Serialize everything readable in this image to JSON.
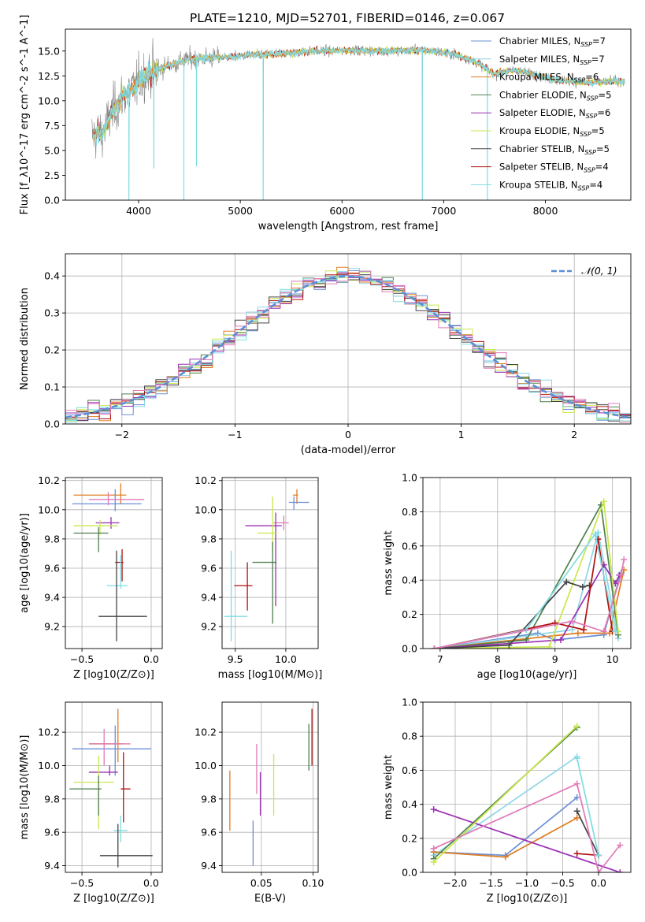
{
  "figure_title": "PLATE=1210, MJD=52701, FIBERID=0146, z=0.067",
  "colors": {
    "chabrier_miles": "#6b8fd6",
    "salpeter_miles": "#8fd6e6",
    "kroupa_miles": "#e07b1f",
    "chabrier_elodie": "#4f7f4f",
    "salpeter_elodie": "#9b2fb4",
    "kroupa_elodie": "#c9e84a",
    "chabrier_stelib": "#444444",
    "salpeter_stelib": "#b01010",
    "kroupa_stelib": "#7fdde0",
    "pink": "#e07ab8",
    "data": "#808080",
    "normal": "#5b8fd6"
  },
  "chart_data": [
    {
      "id": "spectrum",
      "type": "line",
      "title": "PLATE=1210, MJD=52701, FIBERID=0146, z=0.067",
      "xlabel": "wavelength [Angstrom, rest frame]",
      "ylabel": "Flux [f_λ10^-17 erg cm^-2 s^-1 A^-1]",
      "xlim": [
        3280,
        8840
      ],
      "ylim": [
        0,
        17.2
      ],
      "xticks": [
        "4000",
        "5000",
        "6000",
        "7000",
        "8000"
      ],
      "yticks": [
        "0.0",
        "2.5",
        "5.0",
        "7.5",
        "10.0",
        "12.5",
        "15.0"
      ],
      "grid": false,
      "legend_position": "top-right",
      "legend": [
        "Chabrier MILES, N_SSP=7",
        "Salpeter MILES, N_SSP=7",
        "Kroupa MILES, N_SSP=6",
        "Chabrier ELODIE, N_SSP=5",
        "Salpeter ELODIE, N_SSP=6",
        "Kroupa ELODIE, N_SSP=5",
        "Chabrier STELIB, N_SSP=5",
        "Salpeter STELIB, N_SSP=4",
        "Kroupa STELIB, N_SSP=4"
      ],
      "continuum": {
        "x": [
          3550,
          3650,
          3750,
          3850,
          3950,
          4050,
          4150,
          4300,
          4500,
          4700,
          4900,
          5100,
          5300,
          5500,
          5700,
          5900,
          6100,
          6300,
          6500,
          6700,
          6900,
          7100,
          7300,
          7500,
          7700,
          7900,
          8100,
          8300,
          8500,
          8700
        ],
        "y": [
          6.5,
          6.8,
          9.0,
          10.5,
          11.2,
          12.6,
          12.9,
          13.6,
          14.2,
          14.3,
          14.4,
          14.6,
          14.7,
          14.8,
          15.0,
          15.0,
          15.1,
          15.0,
          15.0,
          15.1,
          15.0,
          14.7,
          14.0,
          12.7,
          13.1,
          12.6,
          12.1,
          11.9,
          11.8,
          12.0
        ]
      },
      "absorption_lines": [
        {
          "x": 3905,
          "y": 0.0
        },
        {
          "x": 4445,
          "y": 0.0
        },
        {
          "x": 4570,
          "y": 3.4
        },
        {
          "x": 4150,
          "y": 3.2
        },
        {
          "x": 5225,
          "y": 0.0
        },
        {
          "x": 6790,
          "y": 0.0
        },
        {
          "x": 7430,
          "y": 0.0
        }
      ]
    },
    {
      "id": "residuals",
      "type": "line",
      "xlabel": "(data-model)/error",
      "ylabel": "Normed distribution",
      "xlim": [
        -2.5,
        2.5
      ],
      "ylim": [
        0,
        0.46
      ],
      "xticks": [
        "−2",
        "−1",
        "0",
        "1",
        "2"
      ],
      "yticks": [
        "0.0",
        "0.1",
        "0.2",
        "0.3",
        "0.4"
      ],
      "grid": true,
      "legend_position": "top-right",
      "legend": [
        "𝒩(0, 1)"
      ],
      "bin_width": 0.1,
      "series_note": "step histograms, 9 model fits; dashed line = N(0,1)"
    },
    {
      "id": "age_vs_Z",
      "type": "scatter",
      "xlabel": "Z [log10(Z/Z⊙)]",
      "ylabel": "age  [log10(age/yr)]",
      "xlim": [
        -0.62,
        0.08
      ],
      "ylim": [
        9.05,
        10.22
      ],
      "xticks": [
        "−0.5",
        "0.0"
      ],
      "yticks": [
        "9.2",
        "9.4",
        "9.6",
        "9.8",
        "10.0",
        "10.2"
      ],
      "grid": true,
      "points": [
        {
          "x": -0.22,
          "y": 10.1,
          "xerr": [
            0.34,
            0.04
          ],
          "yerr": [
            0.06,
            0.08
          ]
        },
        {
          "x": -0.26,
          "y": 10.04,
          "xerr": [
            0.31,
            0.19
          ],
          "yerr": [
            0.05,
            0.1
          ]
        },
        {
          "x": -0.31,
          "y": 10.07,
          "xerr": [
            0.14,
            0.26
          ],
          "yerr": [
            0.04,
            0.05
          ]
        },
        {
          "x": -0.29,
          "y": 9.91,
          "xerr": [
            0.11,
            0.06
          ],
          "yerr": [
            0.04,
            0.04
          ]
        },
        {
          "x": -0.37,
          "y": 9.89,
          "xerr": [
            0.19,
            0.13
          ],
          "yerr": [
            0.06,
            0.04
          ]
        },
        {
          "x": -0.38,
          "y": 9.84,
          "xerr": [
            0.18,
            0.07
          ],
          "yerr": [
            0.13,
            0.04
          ]
        },
        {
          "x": -0.21,
          "y": 9.64,
          "xerr": [
            0.05,
            0.01
          ],
          "yerr": [
            0.13,
            0.09
          ]
        },
        {
          "x": -0.22,
          "y": 9.48,
          "xerr": [
            0.1,
            0.05
          ],
          "yerr": [
            0.02,
            0.21
          ]
        },
        {
          "x": -0.25,
          "y": 9.27,
          "xerr": [
            0.13,
            0.22
          ],
          "yerr": [
            0.17,
            0.45
          ]
        }
      ]
    },
    {
      "id": "age_vs_mass",
      "type": "scatter",
      "xlabel": "mass [log10(M/M⊙)]",
      "ylabel": "",
      "xlim": [
        9.37,
        10.32
      ],
      "ylim": [
        9.05,
        10.22
      ],
      "xticks": [
        "9.5",
        "10.0"
      ],
      "yticks": [
        "9.2",
        "9.4",
        "9.6",
        "9.8",
        "10.0",
        "10.2"
      ],
      "grid": true,
      "points": [
        {
          "x": 10.11,
          "y": 10.1,
          "xerr": [
            0.04,
            0.01
          ],
          "yerr": [
            0.06,
            0.04
          ]
        },
        {
          "x": 10.08,
          "y": 10.05,
          "xerr": [
            0.05,
            0.15
          ],
          "yerr": [
            0.05,
            0.04
          ]
        },
        {
          "x": 9.98,
          "y": 9.91,
          "xerr": [
            0.1,
            0.05
          ],
          "yerr": [
            0.05,
            0.05
          ]
        },
        {
          "x": 9.9,
          "y": 9.89,
          "xerr": [
            0.3,
            0.06
          ],
          "yerr": [
            0.55,
            0.09
          ]
        },
        {
          "x": 9.87,
          "y": 9.84,
          "xerr": [
            0.15,
            0.05
          ],
          "yerr": [
            0.13,
            0.25
          ]
        },
        {
          "x": 9.87,
          "y": 9.64,
          "xerr": [
            0.2,
            0.04
          ],
          "yerr": [
            0.42,
            0.14
          ]
        },
        {
          "x": 9.62,
          "y": 9.48,
          "xerr": [
            0.13,
            0.05
          ],
          "yerr": [
            0.17,
            0.16
          ]
        },
        {
          "x": 9.46,
          "y": 9.27,
          "xerr": [
            0.07,
            0.16
          ],
          "yerr": [
            0.17,
            0.45
          ]
        }
      ]
    },
    {
      "id": "weight_vs_age",
      "type": "line",
      "xlabel": "age  [log10(age/yr)]",
      "ylabel": "mass weight",
      "xlim": [
        6.7,
        10.32
      ],
      "ylim": [
        0,
        1.0
      ],
      "xticks": [
        "7",
        "8",
        "9",
        "10"
      ],
      "yticks": [
        "0.0",
        "0.2",
        "0.4",
        "0.6",
        "0.8",
        "1.0"
      ],
      "grid": true,
      "series": [
        {
          "name": "Chabrier MILES",
          "x": [
            6.9,
            8.7,
            9.0,
            9.85,
            10.1,
            10.15
          ],
          "y": [
            0.0,
            0.09,
            0.05,
            0.08,
            0.39,
            0.44
          ]
        },
        {
          "name": "Salpeter MILES",
          "x": [
            6.9,
            9.3,
            9.75,
            10.1
          ],
          "y": [
            0.0,
            0.11,
            0.68,
            0.06
          ]
        },
        {
          "name": "Kroupa MILES",
          "x": [
            6.9,
            9.4,
            9.95,
            10.2
          ],
          "y": [
            0.0,
            0.09,
            0.09,
            0.46
          ]
        },
        {
          "name": "Chabrier ELODIE",
          "x": [
            6.9,
            8.5,
            9.8,
            10.1
          ],
          "y": [
            0.0,
            0.05,
            0.84,
            0.08
          ]
        },
        {
          "name": "Salpeter ELODIE",
          "x": [
            6.9,
            9.1,
            9.85,
            10.05,
            10.12
          ],
          "y": [
            0.0,
            0.05,
            0.49,
            0.38,
            0.43
          ]
        },
        {
          "name": "Kroupa ELODIE",
          "x": [
            6.9,
            8.9,
            9.85,
            10.1
          ],
          "y": [
            0.0,
            0.01,
            0.86,
            0.1
          ]
        },
        {
          "name": "Chabrier STELIB",
          "x": [
            6.9,
            8.2,
            9.2,
            9.48,
            9.6
          ],
          "y": [
            0.0,
            0.02,
            0.39,
            0.36,
            0.37
          ]
        },
        {
          "name": "Salpeter STELIB",
          "x": [
            6.9,
            9.0,
            9.5,
            9.75,
            10.0
          ],
          "y": [
            0.0,
            0.15,
            0.11,
            0.64,
            0.1
          ]
        },
        {
          "name": "Kroupa STELIB",
          "x": [
            6.9,
            8.5,
            9.7,
            10.05
          ],
          "y": [
            0.0,
            0.11,
            0.67,
            0.1
          ]
        },
        {
          "name": "",
          "x": [
            6.9,
            9.3,
            9.85,
            10.15,
            10.2
          ],
          "y": [
            0.0,
            0.16,
            0.1,
            0.43,
            0.52
          ]
        }
      ]
    },
    {
      "id": "mass_vs_Z",
      "type": "scatter",
      "xlabel": "Z [log10(Z/Z⊙)]",
      "ylabel": "mass [log10(M/M⊙)]",
      "xlim": [
        -0.62,
        0.08
      ],
      "ylim": [
        9.36,
        10.38
      ],
      "xticks": [
        "−0.5",
        "0.0"
      ],
      "yticks": [
        "9.4",
        "9.6",
        "9.8",
        "10.0",
        "10.2"
      ],
      "grid": true,
      "points": [
        {
          "x": -0.24,
          "y": 10.13,
          "xerr": [
            0.21,
            0.04
          ],
          "yerr": [
            0.11,
            0.21
          ]
        },
        {
          "x": -0.26,
          "y": 10.1,
          "xerr": [
            0.31,
            0.26
          ],
          "yerr": [
            0.16,
            0.14
          ]
        },
        {
          "x": -0.34,
          "y": 10.13,
          "xerr": [
            0.11,
            0.19
          ],
          "yerr": [
            0.13,
            0.09
          ]
        },
        {
          "x": -0.3,
          "y": 9.96,
          "xerr": [
            0.15,
            0.06
          ],
          "yerr": [
            0.02,
            0.04
          ]
        },
        {
          "x": -0.38,
          "y": 9.9,
          "xerr": [
            0.18,
            0.11
          ],
          "yerr": [
            0.28,
            0.16
          ]
        },
        {
          "x": -0.38,
          "y": 9.86,
          "xerr": [
            0.21,
            0.02
          ],
          "yerr": [
            0.16,
            0.08
          ]
        },
        {
          "x": -0.2,
          "y": 9.86,
          "xerr": [
            0.02,
            0.05
          ],
          "yerr": [
            0.2,
            0.22
          ]
        },
        {
          "x": -0.22,
          "y": 9.61,
          "xerr": [
            0.05,
            0.05
          ],
          "yerr": [
            0.07,
            0.09
          ]
        },
        {
          "x": -0.24,
          "y": 9.46,
          "xerr": [
            0.13,
            0.25
          ],
          "yerr": [
            0.07,
            0.19
          ]
        }
      ]
    },
    {
      "id": "mass_vs_ebv",
      "type": "scatter",
      "xlabel": "E(B-V)",
      "ylabel": "",
      "xlim": [
        0.012,
        0.105
      ],
      "ylim": [
        9.36,
        10.38
      ],
      "xticks": [
        "0.05",
        "0.10"
      ],
      "yticks": [
        "9.4",
        "9.6",
        "9.8",
        "10.0",
        "10.2"
      ],
      "grid": true,
      "points": [
        {
          "x": 0.0195,
          "y": 9.79,
          "xerr": [
            0,
            0
          ],
          "yerr": [
            0.18,
            0.18
          ]
        },
        {
          "x": 0.042,
          "y": 9.53,
          "xerr": [
            0,
            0
          ],
          "yerr": [
            0.13,
            0.14
          ]
        },
        {
          "x": 0.0455,
          "y": 9.98,
          "xerr": [
            0,
            0
          ],
          "yerr": [
            0.15,
            0.15
          ]
        },
        {
          "x": 0.049,
          "y": 9.84,
          "xerr": [
            0,
            0
          ],
          "yerr": [
            0.14,
            0.12
          ]
        },
        {
          "x": 0.062,
          "y": 9.88,
          "xerr": [
            0,
            0
          ],
          "yerr": [
            0.18,
            0.19
          ]
        },
        {
          "x": 0.096,
          "y": 10.11,
          "xerr": [
            0,
            0
          ],
          "yerr": [
            0.14,
            0.14
          ]
        },
        {
          "x": 0.099,
          "y": 10.17,
          "xerr": [
            0,
            0
          ],
          "yerr": [
            0.17,
            0.17
          ]
        }
      ]
    },
    {
      "id": "weight_vs_Z",
      "type": "line",
      "xlabel": "Z [log10(Z/Z⊙)]",
      "ylabel": "mass weight",
      "xlim": [
        -2.45,
        0.45
      ],
      "ylim": [
        0,
        1.0
      ],
      "xticks": [
        "−2.0",
        "−1.5",
        "−1.0",
        "−0.5",
        "0.0"
      ],
      "yticks": [
        "0.0",
        "0.2",
        "0.4",
        "0.6",
        "0.8",
        "1.0"
      ],
      "grid": true,
      "series": [
        {
          "name": "Chabrier MILES",
          "x": [
            -2.3,
            -1.3,
            -0.3
          ],
          "y": [
            0.12,
            0.1,
            0.44
          ]
        },
        {
          "name": "Salpeter MILES",
          "x": [
            -2.3,
            -0.3
          ],
          "y": [
            0.1,
            0.68
          ]
        },
        {
          "name": "Kroupa MILES",
          "x": [
            -2.3,
            -1.3,
            -0.3
          ],
          "y": [
            0.12,
            0.09,
            0.32
          ]
        },
        {
          "name": "Chabrier ELODIE",
          "x": [
            -2.3,
            -0.3
          ],
          "y": [
            0.08,
            0.85
          ]
        },
        {
          "name": "Salpeter ELODIE",
          "x": [
            -2.3,
            0.3
          ],
          "y": [
            0.37,
            0.0
          ]
        },
        {
          "name": "Kroupa ELODIE",
          "x": [
            -2.3,
            -0.3
          ],
          "y": [
            0.06,
            0.86
          ]
        },
        {
          "name": "Chabrier STELIB",
          "x": [
            -0.3,
            0.0
          ],
          "y": [
            0.36,
            0.1
          ]
        },
        {
          "name": "Salpeter STELIB",
          "x": [
            -0.3,
            0.0
          ],
          "y": [
            0.11,
            0.1
          ]
        },
        {
          "name": "Kroupa STELIB",
          "x": [
            -0.3,
            0.0
          ],
          "y": [
            0.67,
            0.1
          ]
        },
        {
          "name": "",
          "x": [
            -2.3,
            -0.3,
            0.0,
            0.3
          ],
          "y": [
            0.14,
            0.52,
            0.0,
            0.16
          ]
        }
      ]
    }
  ]
}
